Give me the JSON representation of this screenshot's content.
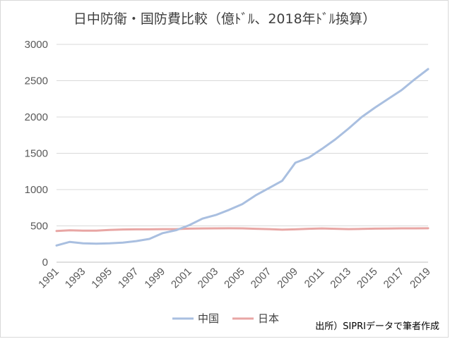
{
  "chart_data": {
    "type": "line",
    "title": "日中防衛・国防費比較（億ﾄﾞﾙ、2018年ﾄﾞﾙ換算）",
    "x": [
      1991,
      1992,
      1993,
      1994,
      1995,
      1996,
      1997,
      1998,
      1999,
      2000,
      2001,
      2002,
      2003,
      2004,
      2005,
      2006,
      2007,
      2008,
      2009,
      2010,
      2011,
      2012,
      2013,
      2014,
      2015,
      2016,
      2017,
      2018,
      2019
    ],
    "x_tick_labels": [
      "1991",
      "1993",
      "1995",
      "1997",
      "1999",
      "2001",
      "2003",
      "2005",
      "2007",
      "2009",
      "2011",
      "2013",
      "2015",
      "2017",
      "2019"
    ],
    "ylim": [
      0,
      3000
    ],
    "y_ticks": [
      0,
      500,
      1000,
      1500,
      2000,
      2500,
      3000
    ],
    "grid": true,
    "legend_position": "bottom",
    "series": [
      {
        "name": "中国",
        "color": "#a9bfe0",
        "values": [
          230,
          280,
          260,
          255,
          260,
          270,
          290,
          320,
          400,
          440,
          510,
          600,
          650,
          720,
          800,
          920,
          1020,
          1120,
          1370,
          1440,
          1560,
          1690,
          1840,
          2000,
          2130,
          2250,
          2370,
          2520,
          2660
        ]
      },
      {
        "name": "日本",
        "color": "#e8a6a4",
        "values": [
          430,
          440,
          435,
          435,
          445,
          450,
          452,
          452,
          455,
          455,
          462,
          465,
          466,
          467,
          466,
          460,
          455,
          448,
          452,
          460,
          465,
          460,
          455,
          458,
          462,
          464,
          466,
          466,
          467
        ]
      }
    ],
    "source_note": "出所）SIPRIデータで筆者作成"
  }
}
